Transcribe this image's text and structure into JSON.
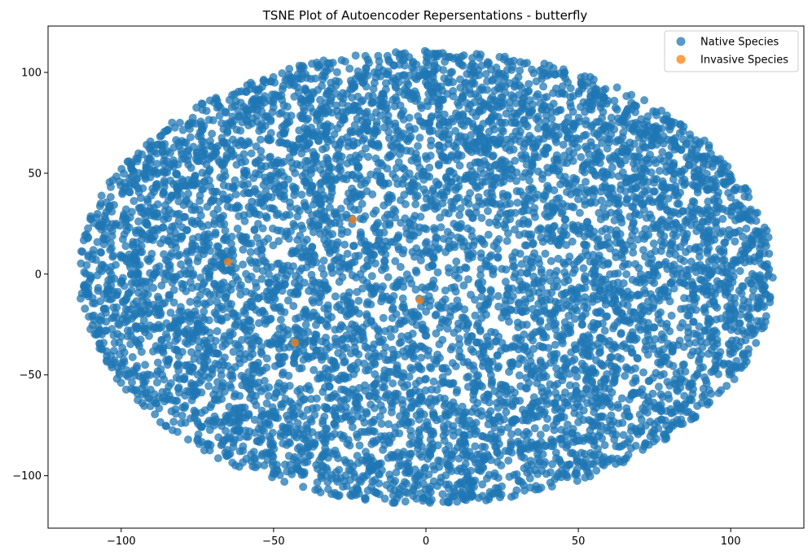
{
  "chart_data": {
    "type": "scatter",
    "title": "TSNE Plot of Autoencoder Repersentations - butterfly",
    "xlabel": "",
    "ylabel": "",
    "xlim": [
      -124,
      124
    ],
    "ylim": [
      -126,
      123
    ],
    "xticks": [
      -100,
      -50,
      0,
      50,
      100
    ],
    "xtick_labels": [
      "−100",
      "−50",
      "0",
      "50",
      "100"
    ],
    "yticks": [
      -100,
      -50,
      0,
      50,
      100
    ],
    "ytick_labels": [
      "−100",
      "−50",
      "0",
      "50",
      "100"
    ],
    "grid": false,
    "legend_position": "top-right",
    "series": [
      {
        "name": "Native Species",
        "color": "#1f77b4",
        "distribution": "dense elliptical cloud, x range -114..114, y range -114..111",
        "approx_point_count": 7000
      },
      {
        "name": "Invasive Species",
        "color": "#ff7f0e",
        "points": [
          {
            "x": -24,
            "y": 27
          },
          {
            "x": -65,
            "y": 6
          },
          {
            "x": -2,
            "y": -13
          },
          {
            "x": -43,
            "y": -34
          }
        ]
      }
    ]
  }
}
